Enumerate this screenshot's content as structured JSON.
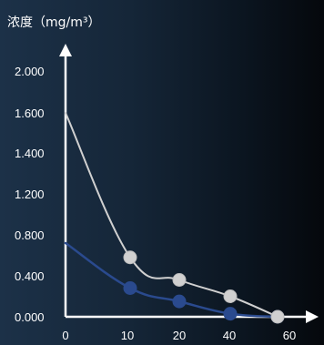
{
  "chart_data": {
    "type": "line",
    "ylabel": "浓度（mg/m³）",
    "xlabel": "",
    "ylim": [
      0,
      2.0
    ],
    "yticks": [
      "0.000",
      "0.400",
      "0.800",
      "1.200",
      "1.400",
      "1.600",
      "2.000"
    ],
    "xticks": [
      "0",
      "10",
      "20",
      "40",
      "60"
    ],
    "grid": false,
    "series": [
      {
        "color": "#d0d0d0",
        "x": [
          "0",
          "10",
          "20",
          "40",
          "60"
        ],
        "values": [
          1.6,
          0.58,
          0.36,
          0.2,
          0.0
        ],
        "markers_from_index": 1
      },
      {
        "color": "#2a4a8e",
        "x": [
          "0",
          "10",
          "20",
          "40",
          "60"
        ],
        "values": [
          0.72,
          0.28,
          0.15,
          0.03,
          0.0
        ],
        "markers_from_index": 1
      }
    ],
    "colors": {
      "axis": "#ffffff",
      "text": "#ffffff"
    }
  }
}
